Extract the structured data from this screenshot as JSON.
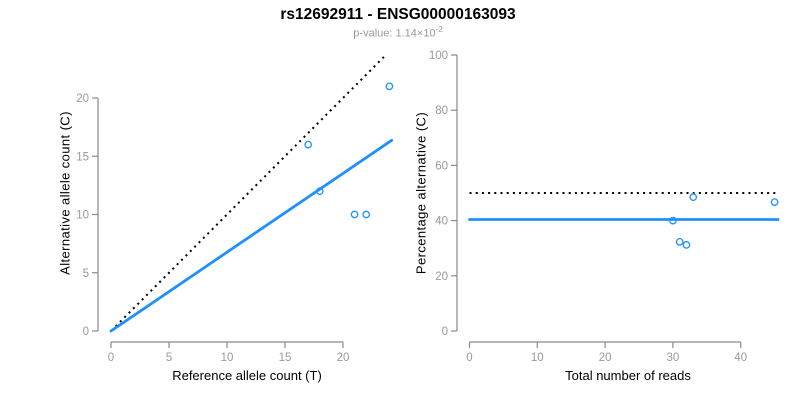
{
  "header": {
    "title": "rs12692911 - ENSG00000163093",
    "subtitle_prefix": "p-value: 1.14×10",
    "subtitle_exponent": "-2"
  },
  "colors": {
    "accent_blue": "#1E90FF",
    "dotted_line": "#000000",
    "axis_line": "#8a8a8a",
    "tick_label": "#999999",
    "title_text": "#000000",
    "subtitle_text": "#9a9a9a"
  },
  "chart_data": [
    {
      "type": "scatter",
      "name": "allele-count-scatter",
      "xlabel": "Reference allele count (T)",
      "ylabel": "Alternative allele count (C)",
      "xticks": [
        0,
        5,
        10,
        15,
        20
      ],
      "yticks": [
        0,
        5,
        10,
        15,
        20
      ],
      "xlim": [
        0,
        24
      ],
      "ylim": [
        0,
        21
      ],
      "grid": false,
      "legend": "none",
      "points": [
        {
          "x": 17,
          "y": 16
        },
        {
          "x": 18,
          "y": 12
        },
        {
          "x": 21,
          "y": 10
        },
        {
          "x": 22,
          "y": 10
        },
        {
          "x": 24,
          "y": 21
        }
      ],
      "lines": [
        {
          "name": "identity-line",
          "style": "dotted",
          "color": "#000000",
          "x1": 0.4,
          "y1": 0.4,
          "x2": 23.6,
          "y2": 23.6
        },
        {
          "name": "regression-line",
          "style": "solid",
          "color": "#1E90FF",
          "x1": 0,
          "y1": 0,
          "x2": 24.2,
          "y2": 16.37
        }
      ]
    },
    {
      "type": "scatter",
      "name": "percentage-alternative-scatter",
      "xlabel": "Total number of reads",
      "ylabel": "Percentage alternative (C)",
      "xticks": [
        0,
        10,
        20,
        30,
        40
      ],
      "yticks": [
        0,
        20,
        40,
        60,
        80,
        100
      ],
      "xlim": [
        0,
        45
      ],
      "ylim": [
        0,
        100
      ],
      "grid": false,
      "legend": "none",
      "points": [
        {
          "x": 30,
          "y": 40.0
        },
        {
          "x": 31,
          "y": 32.3
        },
        {
          "x": 32,
          "y": 31.2
        },
        {
          "x": 33,
          "y": 48.5
        },
        {
          "x": 45,
          "y": 46.7
        }
      ],
      "lines": [
        {
          "name": "expected-50pct-line",
          "style": "dotted",
          "color": "#000000",
          "x1": 0,
          "y1": 50,
          "x2": 45.5,
          "y2": 50
        },
        {
          "name": "observed-mean-line",
          "style": "solid",
          "color": "#1E90FF",
          "x1": 0,
          "y1": 40.4,
          "x2": 45.5,
          "y2": 40.4
        }
      ]
    }
  ]
}
